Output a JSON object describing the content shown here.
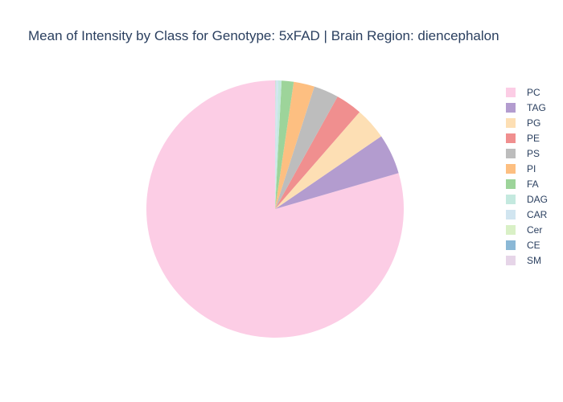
{
  "chart_data": {
    "type": "pie",
    "title": "Mean of Intensity by Class for Genotype: 5xFAD | Brain Region: diencephalon",
    "legend_position": "right",
    "sort": "descending",
    "direction": "counterclockwise",
    "rotation_start": "top",
    "slices": [
      {
        "label": "PC",
        "value": 78.8,
        "color": "#fccde5"
      },
      {
        "label": "TAG",
        "value": 5.0,
        "color": "#b39ccf"
      },
      {
        "label": "PG",
        "value": 4.0,
        "color": "#fddfb4"
      },
      {
        "label": "PE",
        "value": 3.3,
        "color": "#f08f8f"
      },
      {
        "label": "PS",
        "value": 3.1,
        "color": "#bdbdbd"
      },
      {
        "label": "PI",
        "value": 2.6,
        "color": "#fdbf81"
      },
      {
        "label": "FA",
        "value": 1.5,
        "color": "#9dd49a"
      },
      {
        "label": "DAG",
        "value": 0.4,
        "color": "#c4e9df"
      },
      {
        "label": "CAR",
        "value": 0.3,
        "color": "#d1e5f0"
      },
      {
        "label": "Cer",
        "value": 0.05,
        "color": "#d9f0c6"
      },
      {
        "label": "CE",
        "value": 0.03,
        "color": "#8bb8d6"
      },
      {
        "label": "SM",
        "value": 0.02,
        "color": "#e6d5e8"
      }
    ]
  }
}
